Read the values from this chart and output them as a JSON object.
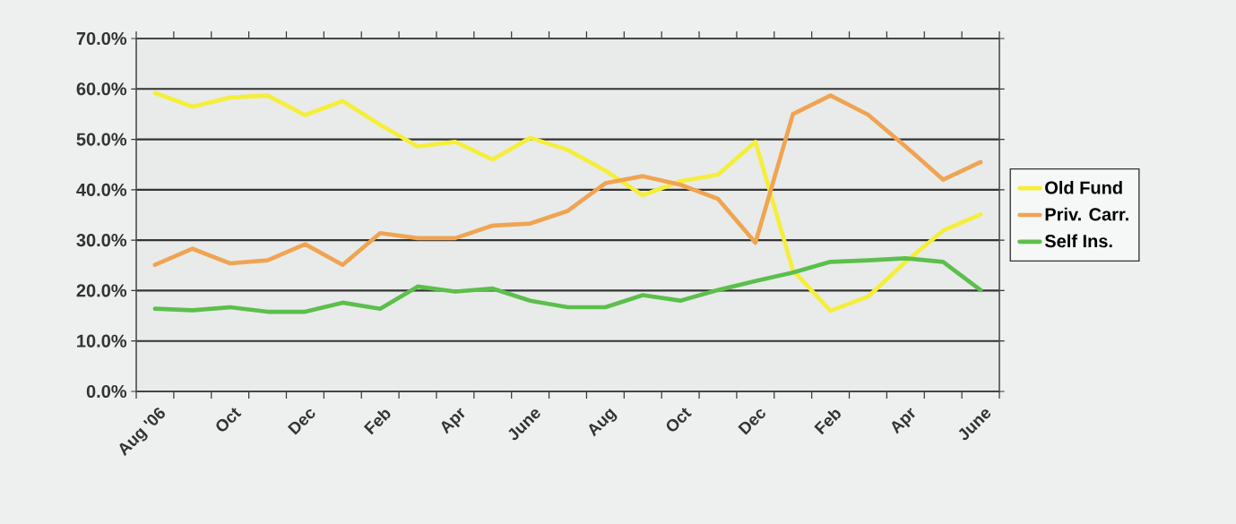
{
  "chart_data": {
    "type": "line",
    "categories": [
      "Aug '06",
      null,
      "Oct",
      null,
      "Dec",
      null,
      "Feb",
      null,
      "Apr",
      null,
      "June",
      null,
      "Aug",
      null,
      "Oct",
      null,
      "Dec",
      null,
      "Feb",
      null,
      "Apr",
      null,
      "June"
    ],
    "series": [
      {
        "name": "Old Fund",
        "color": "#f5ee3a",
        "values": [
          59.2,
          56.5,
          58.3,
          58.7,
          54.8,
          57.6,
          52.9,
          48.6,
          49.5,
          46,
          50.3,
          47.9,
          43.8,
          38.9,
          41.7,
          43,
          49.5,
          24,
          16,
          18.8,
          25.7,
          31.9,
          35.1
        ]
      },
      {
        "name": "Priv. Carr.",
        "color": "#f0a452",
        "values": [
          25.1,
          28.3,
          25.4,
          26,
          29.2,
          25.1,
          31.4,
          30.4,
          30.4,
          32.9,
          33.3,
          35.8,
          41.3,
          42.7,
          41,
          38.2,
          29.5,
          55,
          58.7,
          54.9,
          48.6,
          42,
          45.5
        ]
      },
      {
        "name": "Self Ins.",
        "color": "#5cbf4c",
        "values": [
          16.4,
          16.1,
          16.7,
          15.8,
          15.8,
          17.6,
          16.4,
          20.8,
          19.8,
          20.4,
          18,
          16.7,
          16.7,
          19.1,
          18,
          20.1,
          21.9,
          23.6,
          25.7,
          26,
          26.4,
          25.7,
          20.1
        ]
      }
    ],
    "ylim": [
      0,
      70
    ],
    "yticks": [
      {
        "value": 0,
        "label": "0.0%"
      },
      {
        "value": 10,
        "label": "10.0%"
      },
      {
        "value": 20,
        "label": "20.0%"
      },
      {
        "value": 30,
        "label": "30.0%"
      },
      {
        "value": 40,
        "label": "40.0%"
      },
      {
        "value": 50,
        "label": "50.0%"
      },
      {
        "value": 60,
        "label": "60.0%"
      },
      {
        "value": 70,
        "label": "70.0%"
      }
    ],
    "grid": "y",
    "legend": "right",
    "marker": "none",
    "line_style": "solid"
  }
}
